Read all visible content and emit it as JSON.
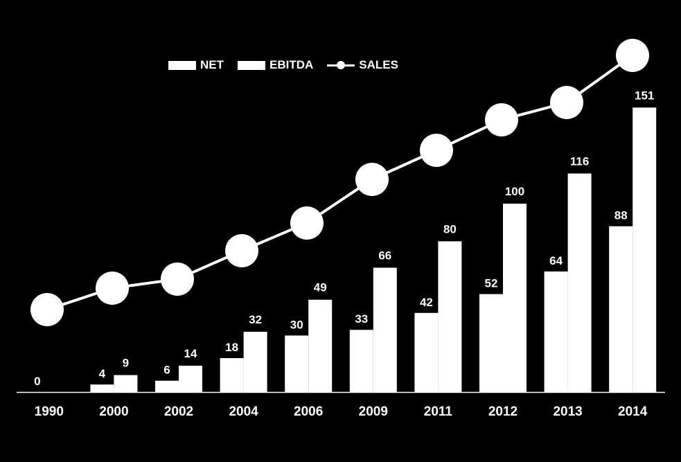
{
  "colors": {
    "background": "#000000",
    "foreground": "#ffffff"
  },
  "chart_data": {
    "type": "bar",
    "title": "",
    "xlabel": "",
    "ylabel": "",
    "categories": [
      "1990",
      "2000",
      "2002",
      "2004",
      "2006",
      "2009",
      "2011",
      "2012",
      "2013",
      "2014"
    ],
    "ylim": [
      0,
      160
    ],
    "series": [
      {
        "name": "NET",
        "type": "bar",
        "values": [
          0,
          4,
          6,
          18,
          30,
          33,
          42,
          52,
          64,
          88
        ]
      },
      {
        "name": "EBITDA",
        "type": "bar",
        "values": [
          null,
          9,
          14,
          32,
          49,
          66,
          80,
          100,
          116,
          151
        ]
      },
      {
        "name": "SALES",
        "type": "line",
        "values": [
          null,
          null,
          null,
          null,
          null,
          null,
          null,
          null,
          null,
          null
        ]
      }
    ],
    "data_labels": {
      "NET": [
        "0",
        "4",
        "6",
        "18",
        "30",
        "33",
        "42",
        "52",
        "64",
        "88"
      ],
      "EBITDA": [
        "",
        "9",
        "14",
        "32",
        "49",
        "66",
        "80",
        "100",
        "116",
        "151"
      ]
    },
    "grid": false,
    "legend": "top",
    "legend_labels": [
      "NET",
      "EBITDA",
      "SALES"
    ]
  }
}
